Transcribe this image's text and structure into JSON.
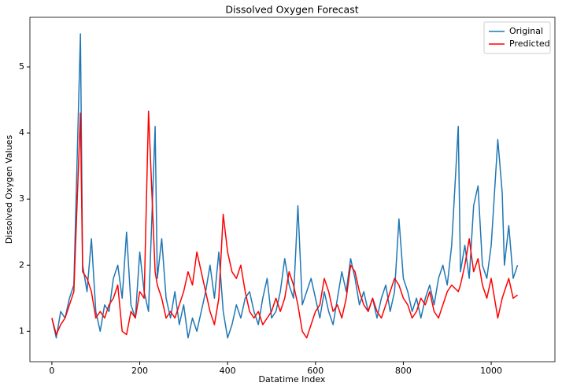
{
  "chart_data": {
    "type": "line",
    "title": "Dissolved Oxygen Forecast",
    "x_label": "Datatime Index",
    "y_label": "Dissolved Oxygen Values",
    "x": [
      0,
      10,
      20,
      30,
      40,
      50,
      65,
      70,
      80,
      90,
      100,
      110,
      120,
      130,
      140,
      150,
      160,
      170,
      180,
      190,
      200,
      210,
      220,
      235,
      240,
      250,
      260,
      270,
      280,
      290,
      300,
      310,
      320,
      330,
      340,
      350,
      360,
      370,
      380,
      390,
      400,
      410,
      420,
      430,
      440,
      450,
      460,
      470,
      480,
      490,
      500,
      510,
      520,
      530,
      540,
      550,
      560,
      570,
      580,
      590,
      600,
      610,
      620,
      630,
      640,
      650,
      660,
      670,
      680,
      690,
      700,
      710,
      720,
      730,
      740,
      750,
      760,
      770,
      780,
      790,
      800,
      810,
      820,
      830,
      840,
      850,
      860,
      870,
      880,
      890,
      900,
      910,
      925,
      930,
      940,
      950,
      960,
      970,
      980,
      990,
      1000,
      1015,
      1025,
      1030,
      1040,
      1050,
      1060
    ],
    "series": [
      {
        "name": "Original",
        "color": "#1f77b4",
        "values": [
          1.2,
          0.9,
          1.3,
          1.2,
          1.5,
          1.7,
          5.5,
          2.0,
          1.6,
          2.4,
          1.3,
          1.0,
          1.4,
          1.3,
          1.8,
          2.0,
          1.5,
          2.5,
          1.4,
          1.2,
          2.2,
          1.6,
          1.3,
          4.1,
          1.8,
          2.4,
          1.5,
          1.2,
          1.6,
          1.1,
          1.4,
          0.9,
          1.2,
          1.0,
          1.3,
          1.6,
          2.0,
          1.5,
          2.2,
          1.3,
          0.9,
          1.1,
          1.4,
          1.2,
          1.5,
          1.6,
          1.3,
          1.1,
          1.5,
          1.8,
          1.2,
          1.3,
          1.6,
          2.1,
          1.7,
          1.5,
          2.9,
          1.4,
          1.6,
          1.8,
          1.5,
          1.2,
          1.6,
          1.3,
          1.1,
          1.5,
          1.9,
          1.6,
          2.1,
          1.8,
          1.4,
          1.6,
          1.3,
          1.5,
          1.2,
          1.5,
          1.7,
          1.3,
          1.6,
          2.7,
          1.8,
          1.6,
          1.3,
          1.5,
          1.2,
          1.5,
          1.7,
          1.4,
          1.8,
          2.0,
          1.7,
          2.3,
          4.1,
          1.9,
          2.3,
          1.8,
          2.9,
          3.2,
          2.0,
          1.8,
          2.3,
          3.9,
          3.1,
          2.0,
          2.6,
          1.8,
          2.0
        ]
      },
      {
        "name": "Predicted",
        "color": "#ff0000",
        "values": [
          1.2,
          0.95,
          1.1,
          1.2,
          1.4,
          1.6,
          4.3,
          1.9,
          1.8,
          1.6,
          1.2,
          1.3,
          1.2,
          1.4,
          1.5,
          1.7,
          1.0,
          0.95,
          1.3,
          1.2,
          1.6,
          1.5,
          4.33,
          1.9,
          1.7,
          1.5,
          1.2,
          1.3,
          1.2,
          1.4,
          1.6,
          1.9,
          1.7,
          2.2,
          1.9,
          1.6,
          1.3,
          1.1,
          1.5,
          2.77,
          2.2,
          1.9,
          1.8,
          2.0,
          1.6,
          1.3,
          1.2,
          1.3,
          1.1,
          1.2,
          1.3,
          1.5,
          1.3,
          1.5,
          1.9,
          1.7,
          1.4,
          1.0,
          0.9,
          1.1,
          1.3,
          1.4,
          1.8,
          1.6,
          1.3,
          1.4,
          1.2,
          1.5,
          2.0,
          1.9,
          1.6,
          1.4,
          1.3,
          1.5,
          1.3,
          1.2,
          1.4,
          1.6,
          1.8,
          1.7,
          1.5,
          1.4,
          1.2,
          1.3,
          1.5,
          1.4,
          1.6,
          1.3,
          1.2,
          1.4,
          1.6,
          1.7,
          1.6,
          1.7,
          2.0,
          2.4,
          1.9,
          2.1,
          1.7,
          1.5,
          1.8,
          1.2,
          1.5,
          1.6,
          1.8,
          1.5,
          1.55
        ]
      }
    ],
    "xlim": [
      -50,
      1145
    ],
    "ylim": [
      0.54,
      5.75
    ],
    "xticks": [
      0,
      200,
      400,
      600,
      800,
      1000
    ],
    "yticks": [
      1,
      2,
      3,
      4,
      5
    ],
    "legend": "upper right"
  }
}
